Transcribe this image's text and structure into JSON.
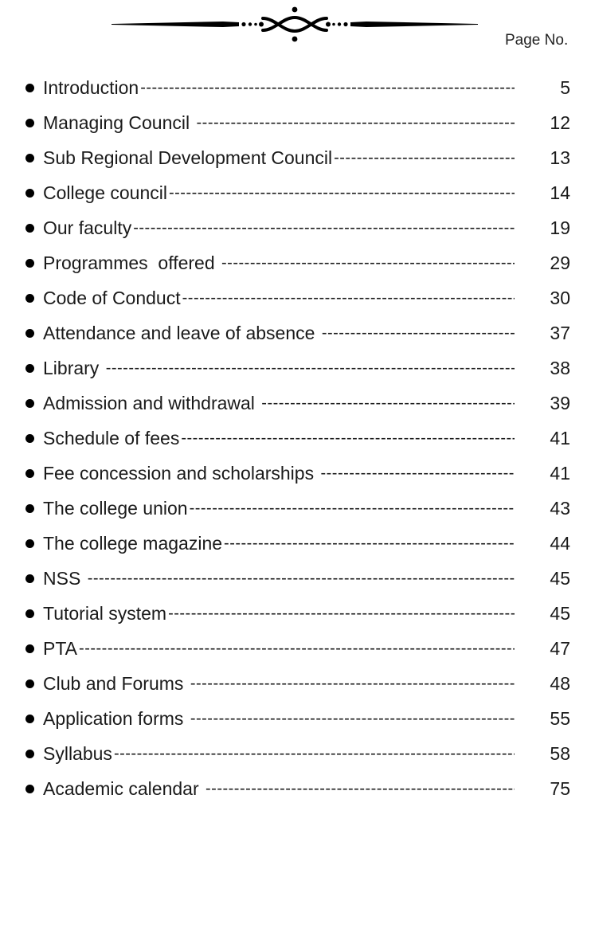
{
  "header": {
    "ornament_icon": "decorative-scroll-divider",
    "page_no_label": "Page No."
  },
  "toc": {
    "entries": [
      {
        "title": "Introduction",
        "page": "5"
      },
      {
        "title": "Managing Council ",
        "page": "12"
      },
      {
        "title": "Sub Regional Development Council",
        "page": "13"
      },
      {
        "title": "College council",
        "page": "14"
      },
      {
        "title": "Our faculty",
        "page": "19"
      },
      {
        "title": "Programmes  offered ",
        "page": "29"
      },
      {
        "title": "Code of Conduct",
        "page": "30"
      },
      {
        "title": "Attendance and leave of absence ",
        "page": "37"
      },
      {
        "title": "Library ",
        "page": "38"
      },
      {
        "title": "Admission and withdrawal ",
        "page": "39"
      },
      {
        "title": "Schedule of fees",
        "page": "41"
      },
      {
        "title": "Fee concession and scholarships ",
        "page": "41"
      },
      {
        "title": "The college union",
        "page": "43"
      },
      {
        "title": "The college magazine",
        "page": "44"
      },
      {
        "title": "NSS ",
        "page": "45"
      },
      {
        "title": "Tutorial system",
        "page": "45"
      },
      {
        "title": "PTA",
        "page": "47"
      },
      {
        "title": "Club and Forums ",
        "page": "48"
      },
      {
        "title": "Application forms ",
        "page": "55"
      },
      {
        "title": "Syllabus",
        "page": "58"
      },
      {
        "title": "Academic calendar ",
        "page": "75"
      }
    ]
  }
}
